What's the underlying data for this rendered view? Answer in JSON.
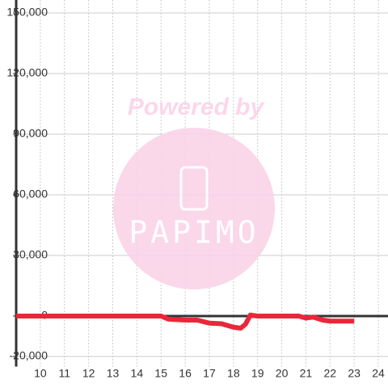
{
  "chart_data": {
    "type": "line",
    "watermark": {
      "line1": "Powered by",
      "line2": "PAPIMO"
    },
    "x": [
      9,
      15,
      15.3,
      16,
      16.5,
      17,
      17.5,
      18,
      18.3,
      18.5,
      18.7,
      19,
      20,
      20.7,
      21,
      21.3,
      21.7,
      22,
      23
    ],
    "series": [
      {
        "name": "value",
        "color": "#e8283a",
        "values": [
          0,
          0,
          -1500,
          -2000,
          -2000,
          -3500,
          -3800,
          -5500,
          -6000,
          -4000,
          500,
          0,
          0,
          0,
          -1000,
          -500,
          -2000,
          -2500,
          -2500
        ]
      }
    ],
    "xlim": [
      9,
      24.4
    ],
    "xticks": [
      10,
      11,
      12,
      13,
      14,
      15,
      16,
      17,
      18,
      19,
      20,
      21,
      22,
      23,
      24
    ],
    "ylim": [
      -25000,
      150000
    ],
    "yticks": [
      {
        "value": -20000,
        "label": "-20,000"
      },
      {
        "value": 0,
        "label": "0"
      },
      {
        "value": 30000,
        "label": "30,000"
      },
      {
        "value": 60000,
        "label": "60,000"
      },
      {
        "value": 90000,
        "label": "90,000"
      },
      {
        "value": 120000,
        "label": "120,000"
      },
      {
        "value": 150000,
        "label": "150,000"
      }
    ],
    "grid": true
  }
}
